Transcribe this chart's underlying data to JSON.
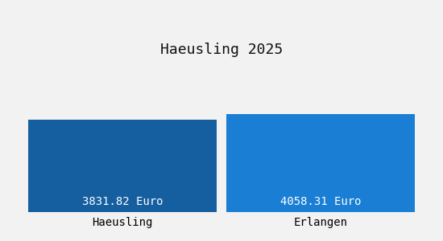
{
  "title": "Haeusling 2025",
  "categories": [
    "Haeusling",
    "Erlangen"
  ],
  "values": [
    3831.82,
    4058.31
  ],
  "bar_colors": [
    "#155fa0",
    "#1a7fd4"
  ],
  "value_labels": [
    "3831.82 Euro",
    "4058.31 Euro"
  ],
  "value_label_color": "#ffffff",
  "value_label_fontsize": 10,
  "title_fontsize": 13,
  "category_fontsize": 10,
  "background_color": "#f2f2f2",
  "ylim": [
    0,
    6000
  ],
  "bar_width": 0.95,
  "title_color": "#111111"
}
